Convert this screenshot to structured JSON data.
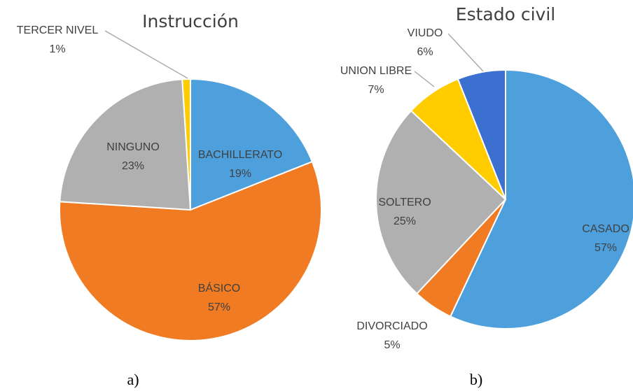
{
  "chart_data": [
    {
      "type": "pie",
      "title": "Instrucción",
      "caption": "a)",
      "categories": [
        "BACHILLERATO",
        "BÁSICO",
        "NINGUNO",
        "TERCER NIVEL"
      ],
      "values": [
        19,
        57,
        23,
        1
      ],
      "value_labels": [
        "19%",
        "57%",
        "23%",
        "1%"
      ],
      "colors": [
        "#4ea0dd",
        "#f07b22",
        "#b0b0b0",
        "#ffcc00"
      ]
    },
    {
      "type": "pie",
      "title": "Estado civil",
      "caption": "b)",
      "categories": [
        "CASADO",
        "DIVORCIADO",
        "SOLTERO",
        "UNION LIBRE",
        "VIUDO"
      ],
      "values": [
        57,
        5,
        25,
        7,
        6
      ],
      "value_labels": [
        "57%",
        "5%",
        "25%",
        "7%",
        "6%"
      ],
      "colors": [
        "#4ea0dd",
        "#f07b22",
        "#b0b0b0",
        "#ffcc00",
        "#3b6fd0"
      ]
    }
  ]
}
